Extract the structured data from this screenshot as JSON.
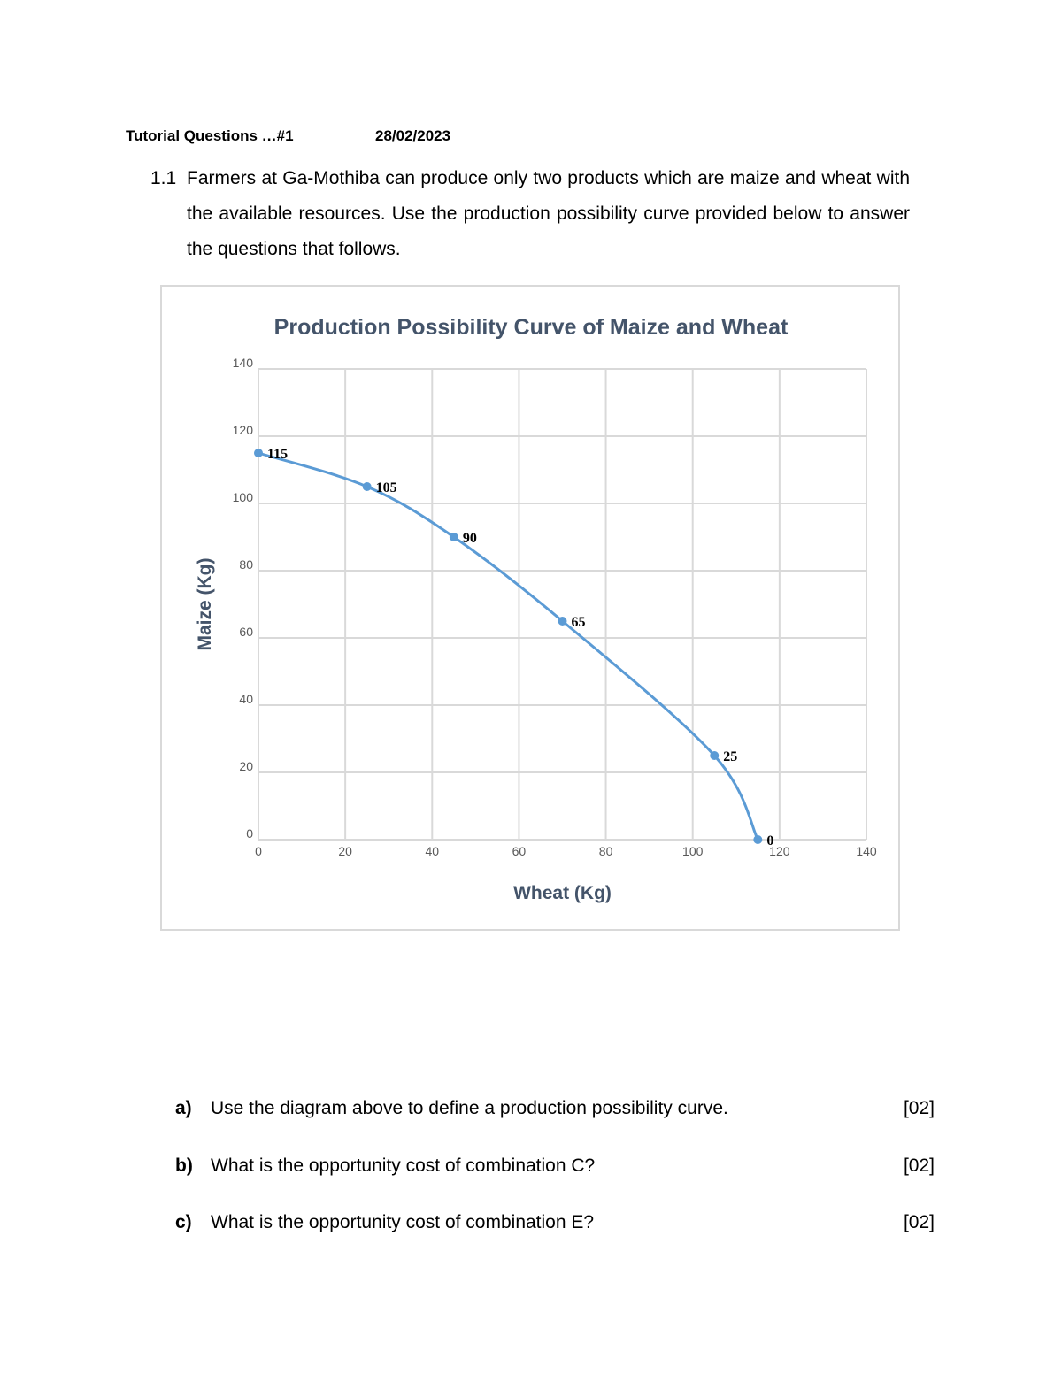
{
  "header": {
    "title": "Tutorial Questions …#1",
    "date": "28/02/2023"
  },
  "question": {
    "number": "1.1",
    "text": "Farmers at Ga-Mothiba can produce only two products which are maize and wheat with the available resources. Use the production possibility curve provided below to answer the questions that follows."
  },
  "chart_data": {
    "type": "line",
    "title": "Production Possibility Curve of Maize and Wheat",
    "xlabel": "Wheat (Kg)",
    "ylabel": "Maize (Kg)",
    "xlim": [
      0,
      140
    ],
    "ylim": [
      0,
      140
    ],
    "xticks": [
      0,
      20,
      40,
      60,
      80,
      100,
      120,
      140
    ],
    "yticks": [
      0,
      20,
      40,
      60,
      80,
      100,
      120,
      140
    ],
    "grid": true,
    "smooth": true,
    "color": "#5b9bd5",
    "series": [
      {
        "x": [
          0,
          25,
          45,
          70,
          105,
          115
        ],
        "y": [
          115,
          105,
          90,
          65,
          25,
          0
        ],
        "labels": [
          "115",
          "105",
          "90",
          "65",
          "25",
          "0"
        ]
      }
    ]
  },
  "sub_questions": [
    {
      "letter": "a)",
      "text": "Use the diagram above to define a production possibility curve.",
      "marks": "[02]"
    },
    {
      "letter": "b)",
      "text": "What is the opportunity cost of combination C?",
      "marks": "[02]"
    },
    {
      "letter": "c)",
      "text": "What is the opportunity cost of combination E?",
      "marks": "[02]"
    }
  ]
}
